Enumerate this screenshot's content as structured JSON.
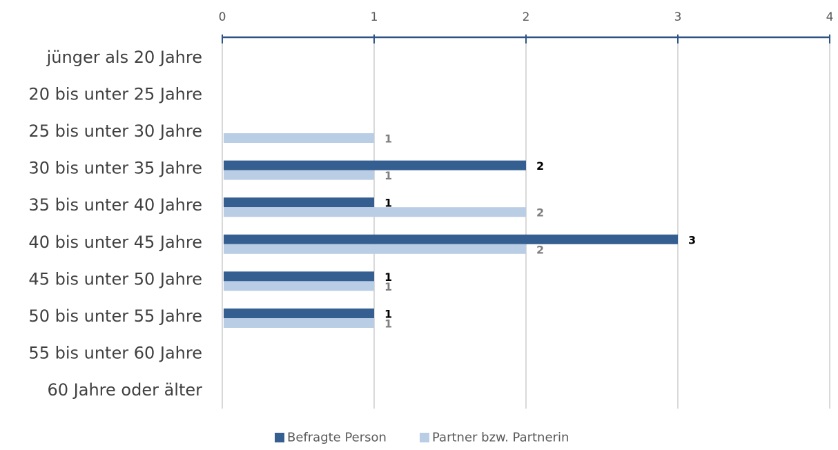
{
  "chart_data": {
    "type": "bar",
    "orientation": "horizontal",
    "categories": [
      "jünger als 20 Jahre",
      "20 bis unter 25 Jahre",
      "25 bis unter 30 Jahre",
      "30 bis unter 35 Jahre",
      "35 bis unter 40 Jahre",
      "40 bis unter 45 Jahre",
      "45 bis unter 50 Jahre",
      "50 bis unter 55 Jahre",
      "55 bis unter 60 Jahre",
      "60 Jahre oder älter"
    ],
    "series": [
      {
        "name": "Befragte Person",
        "color": "#355f91",
        "label_color": "#000000",
        "values": [
          null,
          null,
          null,
          2,
          1,
          3,
          1,
          1,
          null,
          null
        ]
      },
      {
        "name": "Partner bzw. Partnerin",
        "color": "#b9cde5",
        "label_color": "#7f7f7f",
        "values": [
          null,
          null,
          1,
          1,
          2,
          2,
          1,
          1,
          null,
          null
        ]
      }
    ],
    "xlim": [
      0,
      4
    ],
    "xticks": [
      0,
      1,
      2,
      3,
      4
    ],
    "x_axis_position": "top",
    "grid": true,
    "legend_position": "bottom",
    "axis_color": "#2e5484",
    "grid_color": "#d9d9d9",
    "category_label_color": "#404040",
    "tick_label_color": "#595959"
  }
}
